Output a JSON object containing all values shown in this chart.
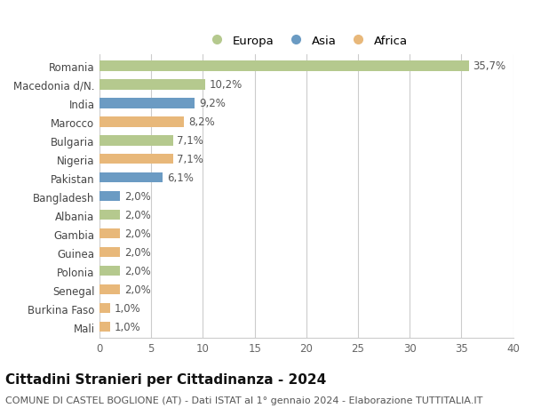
{
  "countries": [
    "Romania",
    "Macedonia d/N.",
    "India",
    "Marocco",
    "Bulgaria",
    "Nigeria",
    "Pakistan",
    "Bangladesh",
    "Albania",
    "Gambia",
    "Guinea",
    "Polonia",
    "Senegal",
    "Burkina Faso",
    "Mali"
  ],
  "values": [
    35.7,
    10.2,
    9.2,
    8.2,
    7.1,
    7.1,
    6.1,
    2.0,
    2.0,
    2.0,
    2.0,
    2.0,
    2.0,
    1.0,
    1.0
  ],
  "labels": [
    "35,7%",
    "10,2%",
    "9,2%",
    "8,2%",
    "7,1%",
    "7,1%",
    "6,1%",
    "2,0%",
    "2,0%",
    "2,0%",
    "2,0%",
    "2,0%",
    "2,0%",
    "1,0%",
    "1,0%"
  ],
  "continents": [
    "Europa",
    "Europa",
    "Asia",
    "Africa",
    "Europa",
    "Africa",
    "Asia",
    "Asia",
    "Europa",
    "Africa",
    "Africa",
    "Europa",
    "Africa",
    "Africa",
    "Africa"
  ],
  "colors": {
    "Europa": "#b5c98e",
    "Asia": "#6b9bc3",
    "Africa": "#e8b87a"
  },
  "title": "Cittadini Stranieri per Cittadinanza - 2024",
  "subtitle": "COMUNE DI CASTEL BOGLIONE (AT) - Dati ISTAT al 1° gennaio 2024 - Elaborazione TUTTITALIA.IT",
  "xlim": [
    0,
    40
  ],
  "xticks": [
    0,
    5,
    10,
    15,
    20,
    25,
    30,
    35,
    40
  ],
  "background_color": "#ffffff",
  "grid_color": "#cccccc",
  "bar_height": 0.55,
  "title_fontsize": 11,
  "subtitle_fontsize": 8,
  "label_fontsize": 8.5,
  "tick_fontsize": 8.5,
  "legend_fontsize": 9.5
}
